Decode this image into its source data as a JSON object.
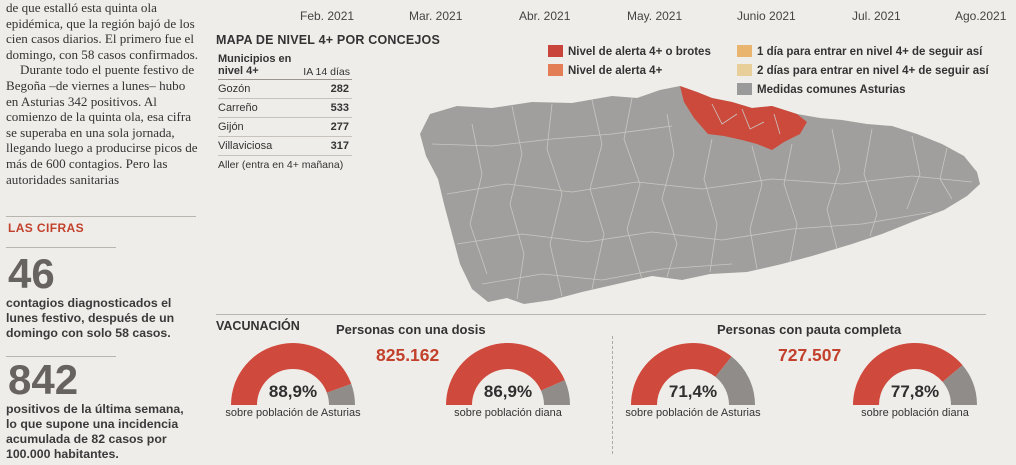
{
  "article": {
    "paragraphs": [
      "de que estalló esta quinta ola epidémica, que la región bajó de los cien casos diarios. El primero fue el domingo, con 58 casos confirmados.",
      "Durante todo el puente festivo de Begoña –de viernes a lunes– hubo en Asturias 342 positivos. Al comienzo de la quinta ola, esa cifra se superaba en una sola jornada, llegando luego a producirse picos de más de 600 contagios. Pero las autoridades sanitarias"
    ]
  },
  "figures": {
    "label": "LAS CIFRAS",
    "items": [
      {
        "number": "46",
        "text": "contagios diagnosticados el lunes festivo, después de un domingo con solo 58 casos."
      },
      {
        "number": "842",
        "text": "positivos de la última semana, lo que supone una incidencia acumulada de 82 casos por 100.000 habitantes."
      }
    ]
  },
  "timeline": {
    "months": [
      "Feb. 2021",
      "Mar. 2021",
      "Abr. 2021",
      "May. 2021",
      "Junio 2021",
      "Jul. 2021",
      "Ago.2021"
    ]
  },
  "map": {
    "title": "MAPA DE NIVEL 4+ POR CONCEJOS",
    "table": {
      "header_col1": "Municipios en nivel 4+",
      "header_col2": "IA 14 días",
      "rows": [
        {
          "name": "Gozón",
          "value": "282"
        },
        {
          "name": "Carreño",
          "value": "533"
        },
        {
          "name": "Gijón",
          "value": "277"
        },
        {
          "name": "Villaviciosa",
          "value": "317"
        }
      ],
      "note": "Aller (entra en 4+ mañana)"
    },
    "legend": [
      {
        "label": "Nivel de alerta 4+ o brotes",
        "color": "#c9443a"
      },
      {
        "label": "Nivel de alerta 4+",
        "color": "#e27d55"
      },
      {
        "label": "1 día para entrar en nivel 4+ de seguir así",
        "color": "#e9b46e"
      },
      {
        "label": "2 días para entrar en nivel 4+ de seguir así",
        "color": "#e8cf9a"
      },
      {
        "label": "Medidas comunes Asturias",
        "color": "#9a9a9a"
      }
    ],
    "colors": {
      "region": "#a19f9d",
      "highlight": "#cc4a3b",
      "borders": "#c9c6c2"
    }
  },
  "vaccination": {
    "title": "VACUNACIÓN",
    "groups": [
      {
        "title": "Personas con una dosis",
        "count": "825.162",
        "gauges": [
          {
            "value": 88.9,
            "label": "88,9%",
            "caption": "sobre población de Asturias"
          },
          {
            "value": 86.9,
            "label": "86,9%",
            "caption": "sobre población diana"
          }
        ]
      },
      {
        "title": "Personas con pauta completa",
        "count": "727.507",
        "gauges": [
          {
            "value": 71.4,
            "label": "71,4%",
            "caption": "sobre población de Asturias"
          },
          {
            "value": 77.8,
            "label": "77,8%",
            "caption": "sobre población diana"
          }
        ]
      }
    ],
    "colors": {
      "filled": "#d0493d",
      "empty": "#8f8c89"
    }
  }
}
